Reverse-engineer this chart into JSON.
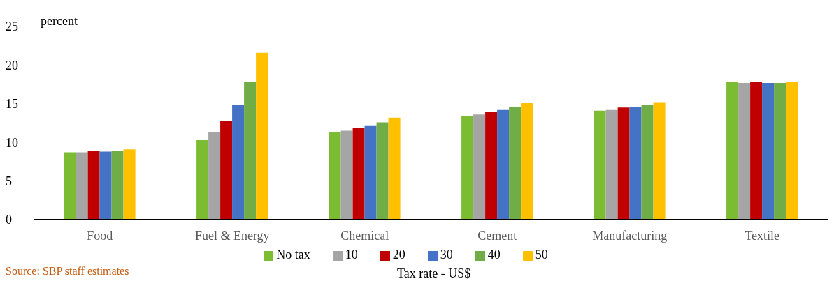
{
  "chart_data": {
    "type": "bar",
    "ylabel": "percent",
    "xlabel": "Tax rate - US$",
    "categories": [
      "Food",
      "Fuel & Energy",
      "Chemical",
      "Cement",
      "Manufacturing",
      "Textile"
    ],
    "series": [
      {
        "name": "No tax",
        "color": "#7bbc33",
        "values": [
          8.7,
          10.3,
          11.3,
          13.4,
          14.1,
          17.8
        ]
      },
      {
        "name": "10",
        "color": "#a5a5a5",
        "values": [
          8.7,
          11.3,
          11.5,
          13.6,
          14.2,
          17.7
        ]
      },
      {
        "name": "20",
        "color": "#c00000",
        "values": [
          8.9,
          12.8,
          11.9,
          14.0,
          14.5,
          17.8
        ]
      },
      {
        "name": "30",
        "color": "#4472c4",
        "values": [
          8.8,
          14.8,
          12.2,
          14.2,
          14.6,
          17.7
        ]
      },
      {
        "name": "40",
        "color": "#70ad47",
        "values": [
          8.9,
          17.8,
          12.6,
          14.6,
          14.8,
          17.7
        ]
      },
      {
        "name": "50",
        "color": "#ffc000",
        "values": [
          9.1,
          21.6,
          13.2,
          15.1,
          15.2,
          17.8
        ]
      }
    ],
    "ylim": [
      0,
      25
    ],
    "yticks": [
      0,
      5,
      10,
      15,
      20,
      25
    ],
    "grid": false,
    "legend": "bottom",
    "annotations": [
      "Source: SBP staff estimates"
    ]
  }
}
